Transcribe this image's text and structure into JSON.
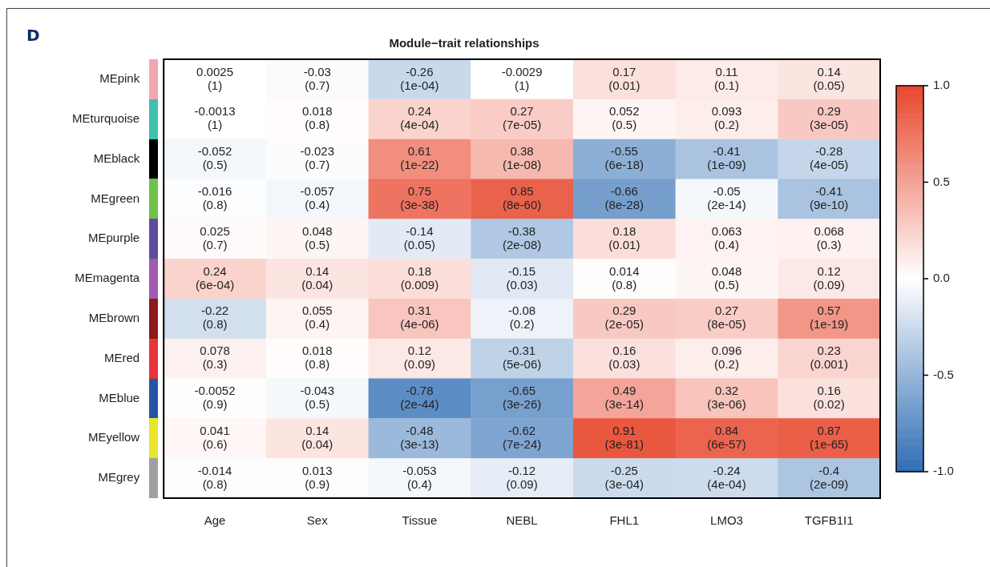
{
  "chart_data": {
    "type": "heatmap",
    "title": "Module−trait relationships",
    "annotations": [
      "D"
    ],
    "categories": [
      "Age",
      "Sex",
      "Tissue",
      "NEBL",
      "FHL1",
      "LMO3",
      "TGFB1I1"
    ],
    "y_categories": [
      "MEpink",
      "MEturquoise",
      "MEblack",
      "MEgreen",
      "MEpurple",
      "MEmagenta",
      "MEbrown",
      "MEred",
      "MEblue",
      "MEyellow",
      "MEgrey"
    ],
    "cells": [
      [
        0.0025,
        -0.03,
        -0.26,
        -0.0029,
        0.17,
        0.11,
        0.14
      ],
      [
        -0.0013,
        0.018,
        0.24,
        0.27,
        0.052,
        0.093,
        0.29
      ],
      [
        -0.052,
        -0.023,
        0.61,
        0.38,
        -0.55,
        -0.41,
        -0.28
      ],
      [
        -0.016,
        -0.057,
        0.75,
        0.85,
        -0.66,
        -0.05,
        -0.41
      ],
      [
        0.025,
        0.048,
        -0.14,
        -0.38,
        0.18,
        0.063,
        0.068
      ],
      [
        0.24,
        0.14,
        0.18,
        -0.15,
        0.014,
        0.048,
        0.12
      ],
      [
        -0.22,
        0.055,
        0.31,
        -0.08,
        0.29,
        0.27,
        0.57
      ],
      [
        0.078,
        0.018,
        0.12,
        -0.31,
        0.16,
        0.096,
        0.23
      ],
      [
        -0.0052,
        -0.043,
        -0.78,
        -0.65,
        0.49,
        0.32,
        0.16
      ],
      [
        0.041,
        0.14,
        -0.48,
        -0.62,
        0.91,
        0.84,
        0.87
      ],
      [
        -0.014,
        0.013,
        -0.053,
        -0.12,
        -0.25,
        -0.24,
        -0.4
      ]
    ],
    "cell_labels": [
      [
        "0.0025\n(1)",
        "-0.03\n(0.7)",
        "-0.26\n(1e-04)",
        "-0.0029\n(1)",
        "0.17\n(0.01)",
        "0.11\n(0.1)",
        "0.14\n(0.05)"
      ],
      [
        "-0.0013\n(1)",
        "0.018\n(0.8)",
        "0.24\n(4e-04)",
        "0.27\n(7e-05)",
        "0.052\n(0.5)",
        "0.093\n(0.2)",
        "0.29\n(3e-05)"
      ],
      [
        "-0.052\n(0.5)",
        "-0.023\n(0.7)",
        "0.61\n(1e-22)",
        "0.38\n(1e-08)",
        "-0.55\n(6e-18)",
        "-0.41\n(1e-09)",
        "-0.28\n(4e-05)"
      ],
      [
        "-0.016\n(0.8)",
        "-0.057\n(0.4)",
        "0.75\n(3e-38)",
        "0.85\n(8e-60)",
        "-0.66\n(8e-28)",
        "-0.05\n(2e-14)",
        "-0.41\n(9e-10)"
      ],
      [
        "0.025\n(0.7)",
        "0.048\n(0.5)",
        "-0.14\n(0.05)",
        "-0.38\n(2e-08)",
        "0.18\n(0.01)",
        "0.063\n(0.4)",
        "0.068\n(0.3)"
      ],
      [
        "0.24\n(6e-04)",
        "0.14\n(0.04)",
        "0.18\n(0.009)",
        "-0.15\n(0.03)",
        "0.014\n(0.8)",
        "0.048\n(0.5)",
        "0.12\n(0.09)"
      ],
      [
        "-0.22\n(0.8)",
        "0.055\n(0.4)",
        "0.31\n(4e-06)",
        "-0.08\n(0.2)",
        "0.29\n(2e-05)",
        "0.27\n(8e-05)",
        "0.57\n(1e-19)"
      ],
      [
        "0.078\n(0.3)",
        "0.018\n(0.8)",
        "0.12\n(0.09)",
        "-0.31\n(5e-06)",
        "0.16\n(0.03)",
        "0.096\n(0.2)",
        "0.23\n(0.001)"
      ],
      [
        "-0.0052\n(0.9)",
        "-0.043\n(0.5)",
        "-0.78\n(2e-44)",
        "-0.65\n(3e-26)",
        "0.49\n(3e-14)",
        "0.32\n(3e-06)",
        "0.16\n(0.02)"
      ],
      [
        "0.041\n(0.6)",
        "0.14\n(0.04)",
        "-0.48\n(3e-13)",
        "-0.62\n(7e-24)",
        "0.91\n(3e-81)",
        "0.84\n(6e-57)",
        "0.87\n(1e-65)"
      ],
      [
        "-0.014\n(0.8)",
        "0.013\n(0.9)",
        "-0.053\n(0.4)",
        "-0.12\n(0.09)",
        "-0.25\n(3e-04)",
        "-0.24\n(4e-04)",
        "-0.4\n(2e-09)"
      ]
    ],
    "clim": [
      -1,
      1
    ],
    "cticks": [
      {
        "value": -1,
        "label": "-1.0"
      },
      {
        "value": -0.5,
        "label": "-0.5"
      },
      {
        "value": 0,
        "label": "0.0"
      },
      {
        "value": 0.5,
        "label": "0.5"
      },
      {
        "value": 1,
        "label": "1.0"
      }
    ]
  }
}
